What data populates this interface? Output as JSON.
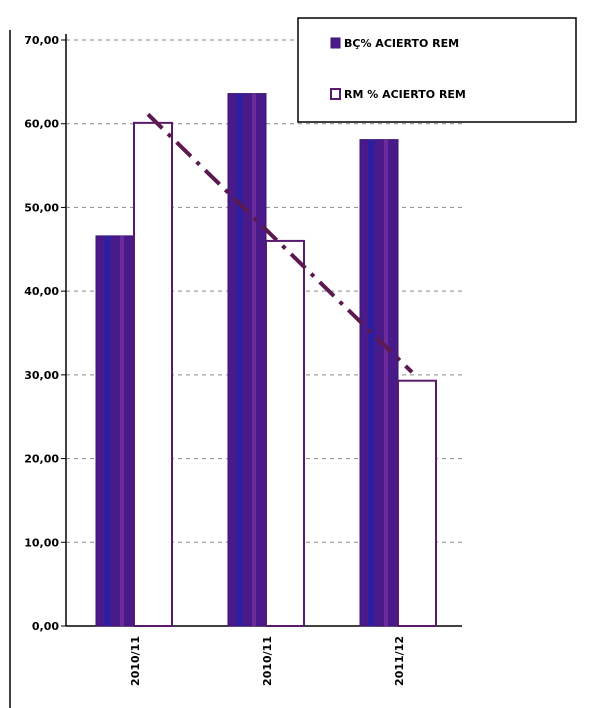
{
  "chart_data": {
    "type": "bar",
    "categories": [
      "2010/11",
      "2010/11",
      "2011/12"
    ],
    "series": [
      {
        "name": "BÇ% ACIERTO REM",
        "values": [
          46.6,
          63.6,
          58.1
        ],
        "color": "#4b1a8a",
        "style": "filled"
      },
      {
        "name": "RM % ACIERTO REM",
        "values": [
          60.1,
          46.0,
          29.3
        ],
        "color": "#ffffff",
        "edge": "#5a1a6e",
        "style": "hollow"
      }
    ],
    "trendline": {
      "series": "RM % ACIERTO REM",
      "color": "#5a1a50",
      "style": "dash-dot"
    },
    "y_ticks": [
      "0,00",
      "10,00",
      "20,00",
      "30,00",
      "40,00",
      "50,00",
      "60,00",
      "70,00"
    ],
    "ylim": [
      0,
      70
    ],
    "grid": true,
    "legend_position": "top-right",
    "title": "",
    "xlabel": "",
    "ylabel": ""
  }
}
